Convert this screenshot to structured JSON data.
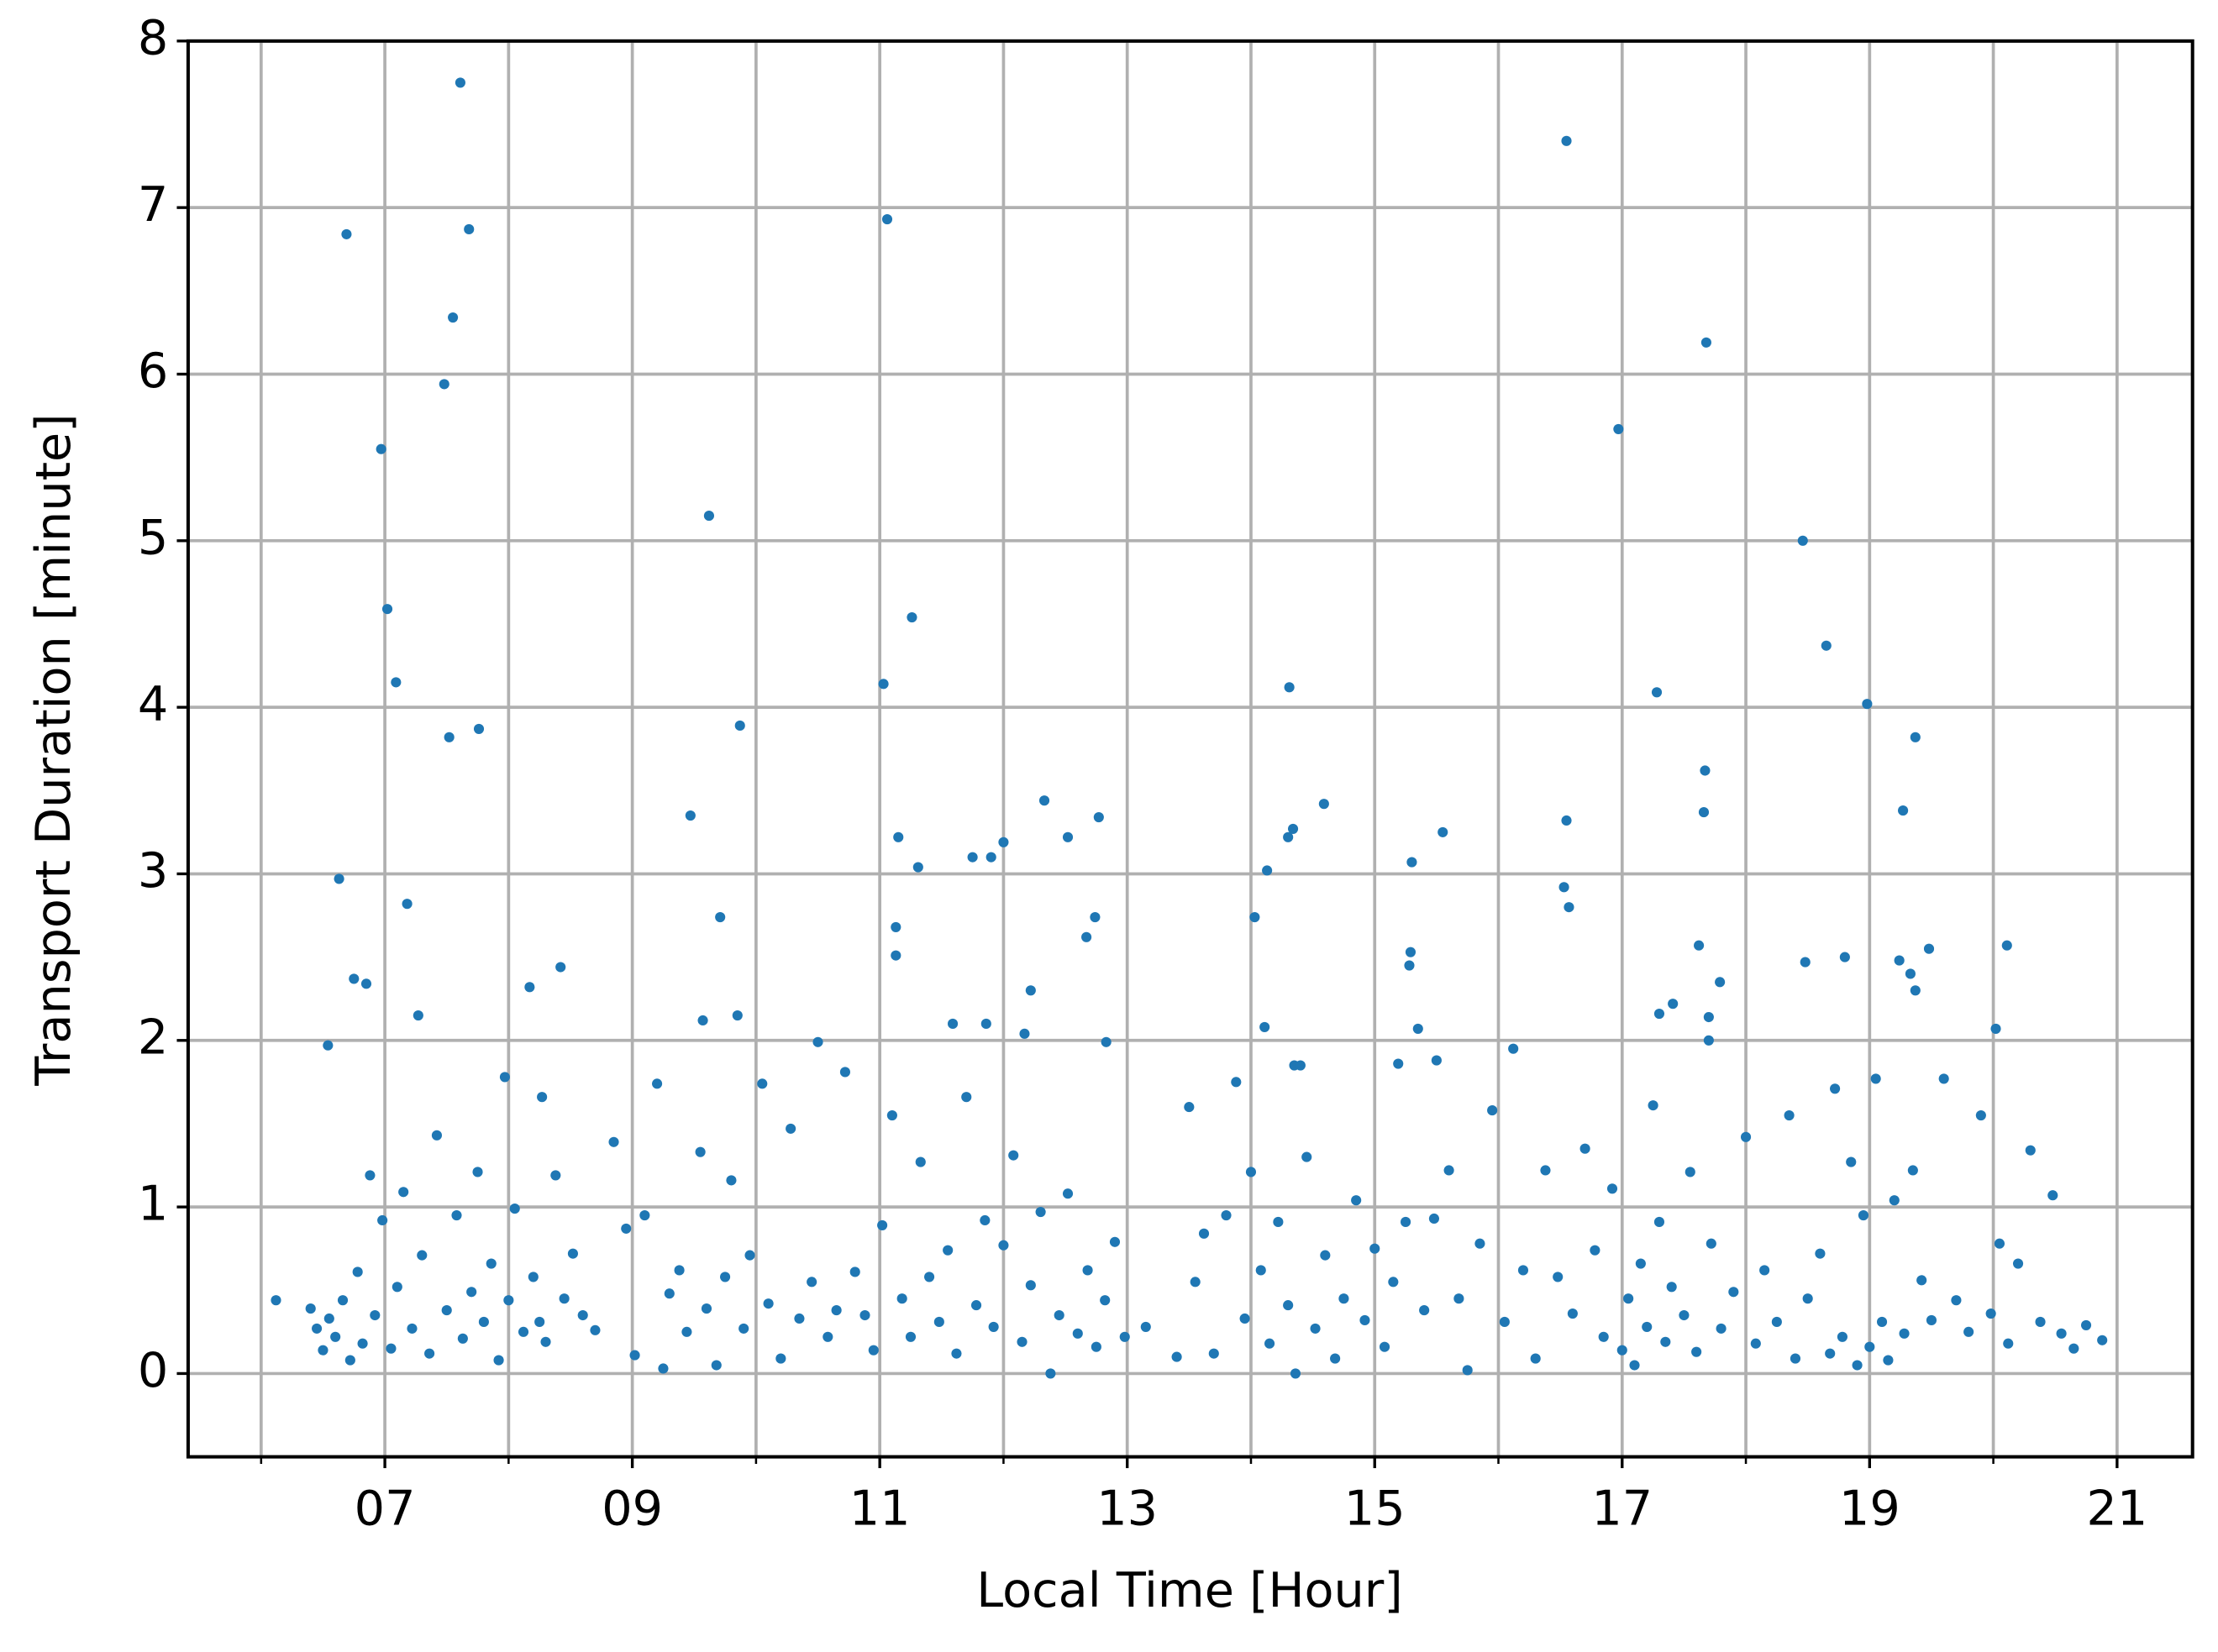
{
  "chart_data": {
    "type": "scatter",
    "x_label": "Local Time [Hour]",
    "y_label": "Transport Duration [minute]",
    "color": "#1f77b4",
    "grid": true,
    "xlim": [
      5.41,
      21.61
    ],
    "ylim": [
      -0.5,
      8
    ],
    "xticks": [
      {
        "value": 7,
        "label": "07"
      },
      {
        "value": 9,
        "label": "09"
      },
      {
        "value": 11,
        "label": "11"
      },
      {
        "value": 13,
        "label": "13"
      },
      {
        "value": 15,
        "label": "15"
      },
      {
        "value": 17,
        "label": "17"
      },
      {
        "value": 19,
        "label": "19"
      },
      {
        "value": 21,
        "label": "21"
      }
    ],
    "xminorticks": [
      6,
      8,
      10,
      12,
      14,
      16,
      18,
      20
    ],
    "yticks": [
      0,
      1,
      2,
      3,
      4,
      5,
      6,
      7,
      8
    ],
    "x": [
      7.61,
      6.69,
      7.68,
      7.55,
      7.48,
      6.97,
      7.02,
      7.09,
      7.52,
      7.76,
      6.63,
      7.18,
      6.75,
      6.85,
      6.54,
      7.27,
      8.17,
      8.42,
      8.27,
      7.97,
      11.06,
      9.62,
      11.26,
      11.03,
      9.87,
      9.47,
      9.71,
      9.57,
      9.85,
      11.15,
      11.31,
      11.13,
      11.13,
      11.75,
      11.9,
      12.0,
      12.33,
      12.52,
      12.77,
      12.67,
      12.74,
      12.22,
      12.83,
      12.17,
      11.59,
      11.86,
      14.31,
      14.34,
      14.3,
      14.59,
      14.13,
      14.03,
      14.11,
      14.35,
      14.4,
      16.55,
      16.97,
      17.68,
      17.28,
      17.67,
      17.66,
      16.55,
      16.53,
      16.57,
      15.3,
      15.55,
      15.29,
      15.28,
      15.35,
      15.5,
      15.19,
      18.46,
      18.65,
      18.98,
      19.37,
      19.27,
      18.48,
      18.8,
      19.24,
      19.33,
      19.37,
      19.48,
      20.11,
      20.02,
      17.79,
      17.62,
      17.41,
      17.3,
      17.7,
      17.7,
      6.12,
      6.4,
      6.45,
      6.5,
      6.55,
      6.6,
      6.66,
      6.72,
      6.78,
      6.82,
      6.88,
      6.92,
      6.98,
      7.05,
      7.1,
      7.15,
      7.22,
      7.3,
      7.36,
      7.42,
      7.5,
      7.58,
      7.63,
      7.7,
      7.75,
      7.8,
      7.86,
      7.92,
      8.0,
      8.05,
      8.12,
      8.2,
      8.25,
      8.3,
      8.38,
      8.45,
      8.52,
      8.6,
      8.7,
      8.85,
      8.95,
      9.02,
      9.1,
      9.2,
      9.25,
      9.3,
      9.38,
      9.44,
      9.55,
      9.6,
      9.68,
      9.75,
      9.8,
      9.9,
      9.95,
      10.05,
      10.1,
      10.2,
      10.28,
      10.35,
      10.45,
      10.5,
      10.58,
      10.65,
      10.72,
      10.8,
      10.88,
      10.95,
      11.02,
      11.1,
      11.18,
      11.25,
      11.33,
      11.4,
      11.48,
      11.55,
      11.62,
      11.7,
      11.78,
      11.85,
      11.92,
      12.0,
      12.08,
      12.15,
      12.22,
      12.3,
      12.38,
      12.45,
      12.52,
      12.6,
      12.68,
      12.75,
      12.82,
      12.9,
      12.98,
      13.15,
      13.4,
      13.5,
      13.55,
      13.62,
      13.7,
      13.8,
      13.88,
      13.95,
      14.0,
      14.08,
      14.15,
      14.22,
      14.3,
      14.36,
      14.45,
      14.52,
      14.6,
      14.68,
      14.75,
      14.85,
      14.92,
      15.0,
      15.08,
      15.15,
      15.25,
      15.4,
      15.48,
      15.6,
      15.68,
      15.75,
      15.85,
      15.95,
      16.05,
      16.12,
      16.2,
      16.3,
      16.38,
      16.48,
      16.6,
      16.7,
      16.78,
      16.85,
      16.92,
      17.0,
      17.05,
      17.1,
      17.15,
      17.2,
      17.25,
      17.3,
      17.35,
      17.4,
      17.5,
      17.55,
      17.6,
      17.72,
      17.8,
      17.9,
      18.0,
      18.08,
      18.15,
      18.25,
      18.35,
      18.4,
      18.5,
      18.6,
      18.68,
      18.72,
      18.78,
      18.85,
      18.9,
      18.95,
      19.0,
      19.05,
      19.1,
      19.15,
      19.2,
      19.28,
      19.35,
      19.42,
      19.5,
      19.6,
      19.7,
      19.8,
      19.9,
      19.98,
      20.05,
      20.12,
      20.2,
      20.3,
      20.38,
      20.48,
      20.55,
      20.65,
      20.75,
      20.88
    ],
    "values": [
      7.75,
      6.84,
      6.87,
      6.34,
      5.94,
      5.55,
      4.59,
      4.15,
      3.82,
      3.87,
      2.97,
      2.82,
      2.37,
      2.34,
      1.97,
      2.15,
      2.32,
      2.44,
      1.66,
      1.78,
      6.93,
      5.15,
      4.54,
      4.14,
      3.89,
      3.35,
      2.74,
      2.12,
      2.15,
      3.22,
      3.04,
      2.68,
      2.51,
      3.1,
      3.1,
      3.19,
      3.44,
      3.22,
      3.34,
      2.62,
      2.74,
      2.3,
      1.99,
      2.04,
      2.1,
      2.1,
      4.12,
      3.27,
      3.22,
      3.42,
      3.02,
      2.74,
      2.08,
      1.85,
      1.85,
      7.4,
      5.67,
      6.19,
      4.09,
      3.62,
      3.37,
      3.32,
      2.92,
      2.8,
      3.07,
      3.25,
      2.53,
      2.45,
      2.07,
      1.88,
      1.86,
      5.0,
      4.37,
      4.02,
      3.82,
      3.38,
      2.47,
      2.5,
      2.48,
      2.4,
      2.3,
      2.55,
      2.57,
      2.07,
      2.35,
      2.57,
      2.22,
      2.16,
      2.14,
      2.0,
      0.44,
      0.39,
      0.27,
      0.14,
      0.33,
      0.22,
      0.44,
      0.08,
      0.61,
      0.18,
      1.19,
      0.35,
      0.92,
      0.15,
      0.52,
      1.09,
      0.27,
      0.71,
      0.12,
      1.43,
      0.38,
      0.95,
      0.21,
      0.49,
      1.21,
      0.31,
      0.66,
      0.08,
      0.44,
      0.99,
      0.25,
      0.58,
      0.31,
      0.19,
      1.19,
      0.45,
      0.72,
      0.35,
      0.26,
      1.39,
      0.87,
      0.11,
      0.95,
      1.74,
      0.03,
      0.48,
      0.62,
      0.25,
      1.33,
      0.39,
      0.05,
      0.58,
      1.16,
      0.27,
      0.71,
      1.74,
      0.42,
      0.09,
      1.47,
      0.33,
      0.55,
      1.99,
      0.22,
      0.38,
      1.81,
      0.61,
      0.35,
      0.14,
      0.89,
      1.55,
      0.45,
      0.22,
      1.27,
      0.58,
      0.31,
      0.74,
      0.12,
      1.66,
      0.41,
      0.92,
      0.28,
      0.77,
      1.31,
      0.19,
      0.53,
      0.97,
      0.0,
      0.35,
      1.08,
      0.24,
      0.62,
      0.16,
      0.44,
      0.79,
      0.22,
      0.28,
      0.1,
      1.6,
      0.55,
      0.84,
      0.12,
      0.95,
      1.75,
      0.33,
      1.21,
      0.62,
      0.18,
      0.91,
      0.41,
      0.0,
      1.3,
      0.27,
      0.71,
      0.09,
      0.45,
      1.04,
      0.32,
      0.75,
      0.16,
      0.55,
      0.91,
      0.38,
      0.93,
      1.22,
      0.45,
      0.02,
      0.78,
      1.58,
      0.31,
      1.95,
      0.62,
      0.09,
      1.22,
      0.58,
      0.36,
      1.35,
      0.74,
      0.22,
      1.11,
      0.14,
      0.45,
      0.05,
      0.66,
      0.28,
      1.61,
      0.91,
      0.19,
      0.52,
      0.35,
      1.21,
      0.13,
      0.78,
      0.27,
      0.49,
      1.42,
      0.18,
      0.62,
      0.31,
      1.55,
      0.09,
      0.45,
      0.72,
      0.12,
      1.71,
      0.22,
      1.27,
      0.05,
      0.95,
      0.16,
      1.77,
      0.31,
      0.08,
      1.04,
      0.24,
      1.22,
      0.56,
      0.32,
      1.77,
      0.44,
      0.25,
      1.55,
      0.36,
      0.78,
      0.18,
      0.66,
      1.34,
      0.31,
      1.07,
      0.24,
      0.15,
      0.29,
      0.2
    ]
  }
}
